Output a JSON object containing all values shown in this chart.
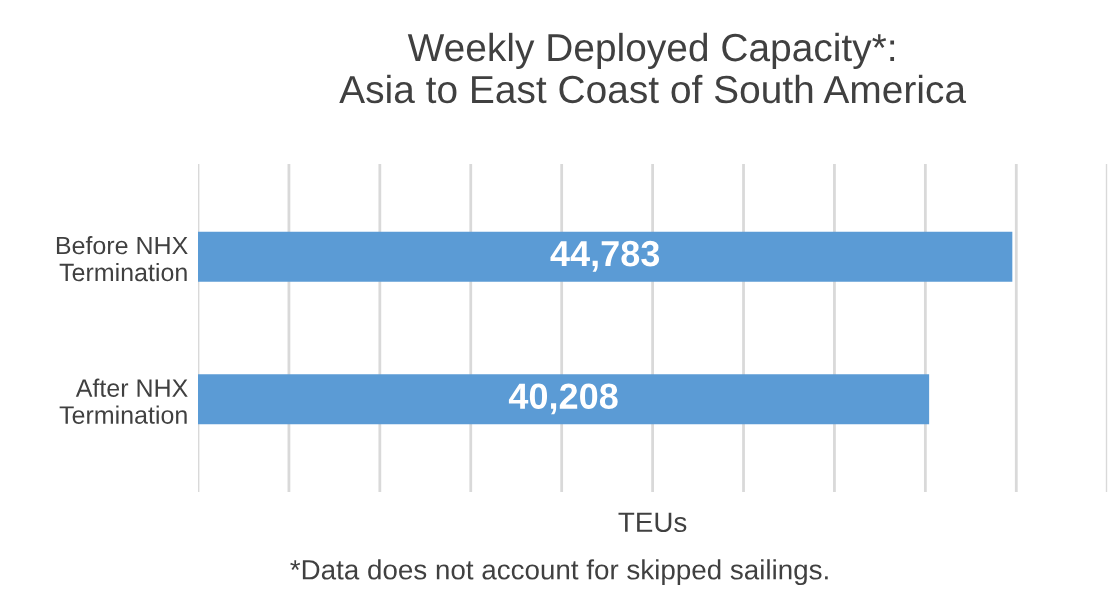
{
  "chart_data": {
    "type": "bar",
    "orientation": "horizontal",
    "title": "Weekly Deployed Capacity*:\nAsia to East Coast of South America",
    "categories": [
      "Before NHX\nTermination",
      "After NHX\nTermination"
    ],
    "values": [
      44783,
      40208
    ],
    "color": "#5b9bd5",
    "value_labels": [
      "44,783",
      "40,208"
    ],
    "xlabel": "TEUs",
    "annotations": [
      "*Data does not account for skipped sailings."
    ],
    "xlim": [
      0,
      50000
    ],
    "xticks": [
      {
        "value": 0,
        "label": null
      },
      {
        "value": 5000,
        "label": null
      },
      {
        "value": 10000,
        "label": null
      },
      {
        "value": 15000,
        "label": null
      },
      {
        "value": 20000,
        "label": null
      },
      {
        "value": 25000,
        "label": null
      },
      {
        "value": 30000,
        "label": null
      },
      {
        "value": 35000,
        "label": null
      },
      {
        "value": 40000,
        "label": null
      },
      {
        "value": 45000,
        "label": null
      },
      {
        "value": 50000,
        "label": null
      }
    ],
    "grid": "x"
  }
}
